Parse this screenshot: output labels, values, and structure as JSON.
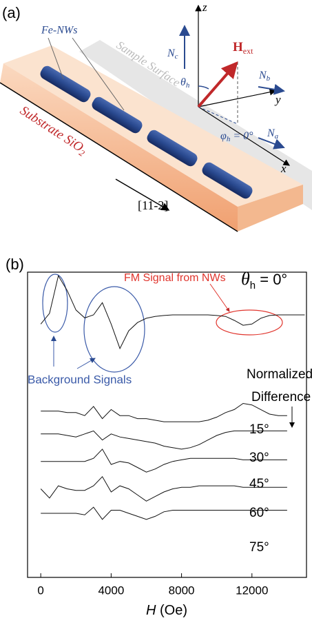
{
  "panel_a": {
    "label": "(a)",
    "wires": "Fe-NWs",
    "surface": "Sample Surface",
    "substrate": {
      "text": "Substrate SiO",
      "subscript": "2"
    },
    "direction": "[11-2]",
    "z": "z",
    "y": "y",
    "x": "x",
    "nc": {
      "symbol": "N",
      "subscript": "c"
    },
    "nb": {
      "symbol": "N",
      "subscript": "b"
    },
    "na": {
      "symbol": "N",
      "subscript": "a"
    },
    "hext": {
      "symbol": "H",
      "subscript": "ext"
    },
    "theta": {
      "symbol": "θ",
      "subscript": "h"
    },
    "phi": {
      "symbol": "φ",
      "subscript": "h",
      "text": " = 0°"
    }
  },
  "chart_data": {
    "type": "line",
    "panel_label": "(b)",
    "xlabel": {
      "symbol": "H",
      "unit": " (Oe)"
    },
    "xlim": [
      -750,
      15100
    ],
    "xticks": [
      0,
      4000,
      8000,
      12000
    ],
    "ylim": [
      0,
      100
    ],
    "annotations": {
      "fm": "FM Signal from NWs",
      "background": "Background Signals",
      "normalized": [
        "Normalized",
        "Difference"
      ],
      "angle": {
        "symbol": "θ",
        "subscript": "h",
        "text": " = 0°"
      }
    },
    "x": [
      0,
      500,
      1000,
      1500,
      2000,
      2500,
      3000,
      3500,
      4000,
      4500,
      5000,
      5500,
      6000,
      6500,
      7000,
      7500,
      8000,
      8500,
      9000,
      9500,
      10000,
      10500,
      11000,
      11500,
      12000,
      12500,
      13000,
      13500,
      14000
    ],
    "series": [
      {
        "color": "#111111",
        "x": [
          0,
          500,
          1000,
          1500,
          2000,
          2500,
          3000,
          3500,
          4000,
          4500,
          5000,
          5500,
          6000,
          6500,
          7000,
          7500,
          8000,
          8500,
          9000,
          9500,
          10000,
          10500,
          11000,
          11500,
          12000,
          12500,
          13000,
          13500,
          14000,
          14500,
          15000
        ],
        "values": [
          83,
          86.5,
          98.8,
          94,
          87.6,
          85,
          86,
          90,
          83,
          75,
          80.8,
          83.5,
          84.9,
          85.5,
          85.8,
          86,
          86,
          86,
          86,
          86,
          85.8,
          85.5,
          84.2,
          82.6,
          83,
          84.9,
          85.8,
          86,
          86,
          86,
          86
        ]
      },
      {
        "name": "15°",
        "color": "#111111",
        "values": [
          54.5,
          54.5,
          54.5,
          54,
          54,
          53,
          56,
          52,
          55,
          53,
          53,
          52,
          52,
          51.5,
          51,
          51,
          51,
          51,
          51,
          51.5,
          52.5,
          54,
          55,
          57,
          56.5,
          55,
          53.5,
          53,
          53
        ]
      },
      {
        "name": "30°",
        "color": "#111111",
        "values": [
          47,
          47,
          47,
          46.5,
          46,
          47,
          48,
          45,
          47,
          46,
          45.5,
          45,
          44.5,
          44,
          43,
          42.5,
          42,
          42.5,
          43.5,
          45,
          46.5,
          47.5,
          48,
          48,
          48,
          48,
          48,
          48,
          48
        ]
      },
      {
        "name": "45°",
        "color": "#111111",
        "values": [
          38,
          38,
          38,
          38,
          38,
          38,
          39,
          42,
          37,
          38,
          37.5,
          36,
          34.5,
          35.5,
          37,
          38,
          38.5,
          39,
          39,
          39,
          39,
          39,
          39,
          38.5,
          38.5,
          38.5,
          38.5,
          38.5,
          38.5
        ]
      },
      {
        "name": "60°",
        "color": "#111111",
        "values": [
          29,
          26,
          30,
          29,
          28.5,
          28.5,
          30,
          33,
          28,
          30,
          29,
          27,
          25,
          26.5,
          28,
          29,
          29.5,
          29.5,
          30,
          30,
          30,
          30,
          30,
          29.5,
          29.5,
          29.5,
          29.5,
          29.5,
          29.5
        ]
      },
      {
        "name": "75°",
        "color": "#111111",
        "values": [
          21,
          21,
          21,
          21,
          21,
          20.5,
          23,
          19,
          22,
          22,
          21,
          20,
          19,
          20,
          21.5,
          22,
          22,
          22,
          22,
          22,
          22,
          22,
          22,
          22,
          22,
          22,
          22,
          22,
          22
        ]
      }
    ]
  }
}
